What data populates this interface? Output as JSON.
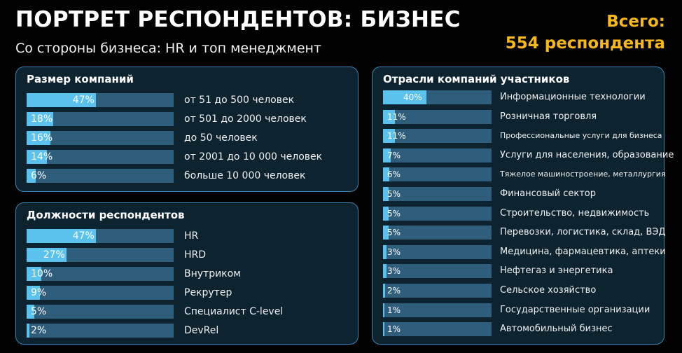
{
  "header": {
    "title": "ПОРТРЕТ РЕСПОНДЕНТОВ: БИЗНЕС",
    "subtitle": "Со стороны бизнеса: HR и топ менеджмент",
    "total_line1": "Всего:",
    "total_line2": "554 респондента"
  },
  "colors": {
    "background": "#020202",
    "panel": "#0d2330",
    "panel_border": "#3f84b0",
    "bar_fill": "#5bc2ee",
    "bar_track": "#2f5e7d",
    "accent": "#f5b91b"
  },
  "chart_data": [
    {
      "type": "bar",
      "orientation": "horizontal",
      "title": "Размер компаний",
      "categories": [
        "от 51 до 500 человек",
        "от 501 до 2000 человек",
        "до 50 человек",
        "от 2001 до 10 000 человек",
        "больше 10 000 человек"
      ],
      "values": [
        47,
        18,
        16,
        14,
        6
      ],
      "labels": [
        "47%",
        "18%",
        "16%",
        "14%",
        "6%"
      ],
      "xlim": [
        0,
        100
      ]
    },
    {
      "type": "bar",
      "orientation": "horizontal",
      "title": "Должности респондентов",
      "categories": [
        "HR",
        "HRD",
        "Внутриком",
        "Рекрутер",
        "Специалист C-level",
        "DevRel"
      ],
      "values": [
        47,
        27,
        10,
        9,
        5,
        2
      ],
      "labels": [
        "47%",
        "27%",
        "10%",
        "9%",
        "5%",
        "2%"
      ],
      "xlim": [
        0,
        100
      ]
    },
    {
      "type": "bar",
      "orientation": "horizontal",
      "title": "Отрасли компаний участников",
      "categories": [
        "Информационные технологии",
        "Розничная торговля",
        "Профессиональные услуги для бизнеса",
        "Услуги для населения, образование",
        "Тяжелое машиностроение, металлургия",
        "Финансовый сектор",
        "Строительство, недвижимость",
        "Перевозки, логистика, склад, ВЭД",
        "Медицина, фармацевтика, аптеки",
        "Нефтегаз и энергетика",
        "Сельское хозяйство",
        "Государственные организации",
        "Автомобильный бизнес"
      ],
      "values": [
        40,
        11,
        11,
        7,
        6,
        5,
        5,
        5,
        3,
        3,
        2,
        1,
        1
      ],
      "labels": [
        "40%",
        "11%",
        "11%",
        "7%",
        "6%",
        "5%",
        "5%",
        "5%",
        "3%",
        "3%",
        "2%",
        "1%",
        "1%"
      ],
      "xlim": [
        0,
        100
      ]
    }
  ]
}
